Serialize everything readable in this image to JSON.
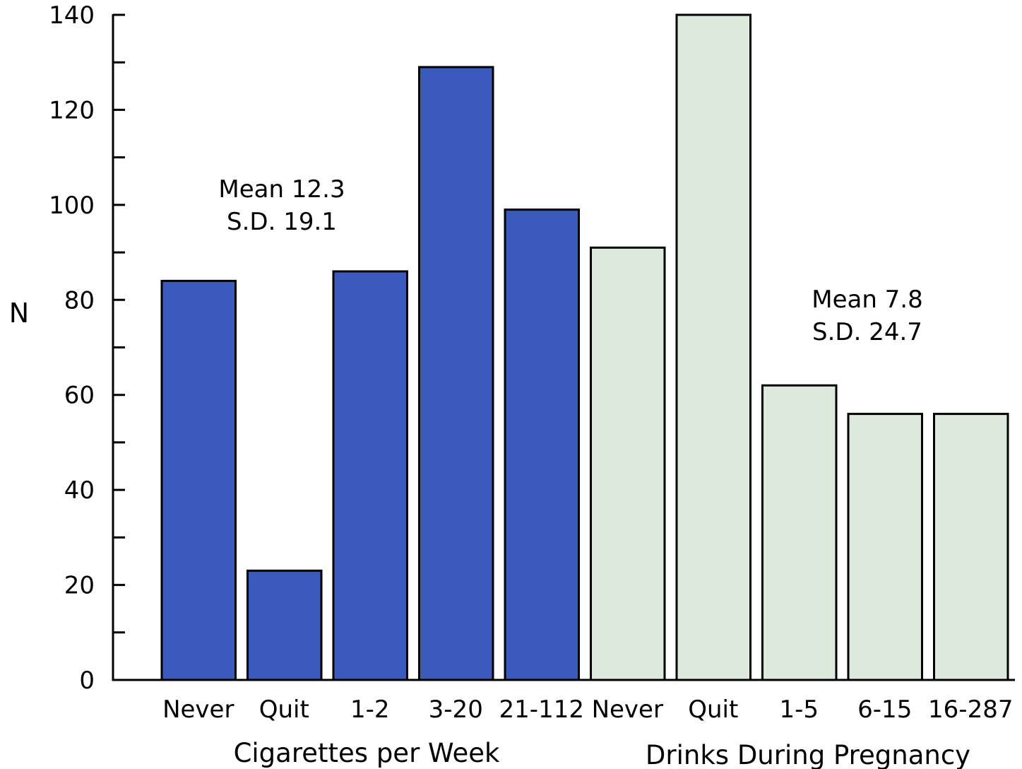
{
  "chart_data": {
    "type": "bar",
    "ylabel": "N",
    "ylim": [
      0,
      140
    ],
    "yticks": [
      0,
      20,
      40,
      60,
      80,
      100,
      120,
      140
    ],
    "grid": false,
    "groups": [
      {
        "name": "Cigarettes per Week",
        "color": "#3a5bbd",
        "categories": [
          "Never",
          "Quit",
          "1-2",
          "3-20",
          "21-112"
        ],
        "values": [
          84,
          23,
          86,
          129,
          99
        ],
        "annotation": [
          "Mean 12.3",
          "S.D. 19.1"
        ]
      },
      {
        "name": "Drinks During Pregnancy",
        "color": "#dde9dd",
        "categories": [
          "Never",
          "Quit",
          "1-5",
          "6-15",
          "16-287"
        ],
        "values": [
          91,
          140,
          62,
          56,
          56
        ],
        "annotation": [
          "Mean 7.8",
          "S.D. 24.7"
        ]
      }
    ]
  }
}
